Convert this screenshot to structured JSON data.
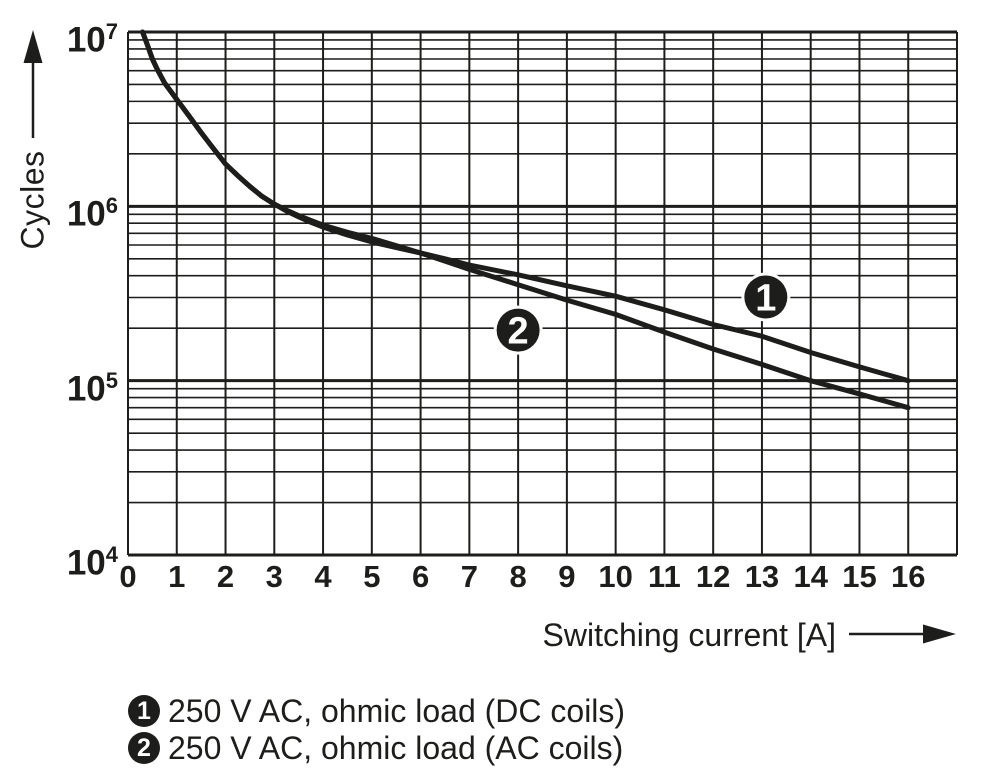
{
  "colors": {
    "ink": "#1d1d1b",
    "background": "#ffffff",
    "marker_text": "#ffffff"
  },
  "chart_data": {
    "type": "line",
    "title": "",
    "xlabel": "Switching current [A] ",
    "ylabel": "Cycles ",
    "grid": "full log grid on",
    "legend_position": "below",
    "x_axis": {
      "min": 0,
      "max": 17,
      "ticks": [
        0,
        1,
        2,
        3,
        4,
        5,
        6,
        7,
        8,
        9,
        10,
        11,
        12,
        13,
        14,
        15,
        16
      ]
    },
    "y_axis": {
      "scale": "log",
      "min": 10000,
      "max": 10000000,
      "tick_labels": [
        {
          "value": 10000000,
          "base": "10",
          "exp": "7"
        },
        {
          "value": 1000000,
          "base": "10",
          "exp": "6"
        },
        {
          "value": 100000,
          "base": "10",
          "exp": "5"
        },
        {
          "value": 10000,
          "base": "10",
          "exp": "4"
        }
      ]
    },
    "series": [
      {
        "id": "1",
        "name": "250 V AC, ohmic load (DC coils)",
        "points": [
          [
            0.3,
            10000000
          ],
          [
            0.4,
            8400000
          ],
          [
            0.5,
            7000000
          ],
          [
            0.6,
            6100000
          ],
          [
            0.75,
            5100000
          ],
          [
            1,
            4100000
          ],
          [
            1.25,
            3300000
          ],
          [
            1.5,
            2650000
          ],
          [
            1.75,
            2150000
          ],
          [
            2,
            1750000
          ],
          [
            2.25,
            1500000
          ],
          [
            2.5,
            1300000
          ],
          [
            2.75,
            1140000
          ],
          [
            3,
            1030000
          ],
          [
            3.25,
            940000
          ],
          [
            3.5,
            870000
          ],
          [
            3.75,
            810000
          ],
          [
            4,
            760000
          ],
          [
            4.5,
            685000
          ],
          [
            5,
            625000
          ],
          [
            5.5,
            580000
          ],
          [
            6,
            540000
          ],
          [
            6.5,
            500000
          ],
          [
            7,
            460000
          ],
          [
            8,
            405000
          ],
          [
            9,
            350000
          ],
          [
            10,
            305000
          ],
          [
            11,
            255000
          ],
          [
            12,
            210000
          ],
          [
            13,
            180000
          ],
          [
            14,
            145000
          ],
          [
            15,
            120000
          ],
          [
            16,
            100000
          ]
        ]
      },
      {
        "id": "2",
        "name": "250 V AC, ohmic load (AC coils)",
        "points": [
          [
            0.3,
            10000000
          ],
          [
            0.4,
            8400000
          ],
          [
            0.5,
            7000000
          ],
          [
            0.6,
            6100000
          ],
          [
            0.75,
            5100000
          ],
          [
            1,
            4100000
          ],
          [
            1.25,
            3300000
          ],
          [
            1.5,
            2650000
          ],
          [
            1.75,
            2150000
          ],
          [
            2,
            1750000
          ],
          [
            2.25,
            1500000
          ],
          [
            2.5,
            1300000
          ],
          [
            2.75,
            1140000
          ],
          [
            3,
            1030000
          ],
          [
            3.25,
            950000
          ],
          [
            3.5,
            885000
          ],
          [
            3.75,
            830000
          ],
          [
            4,
            780000
          ],
          [
            4.5,
            710000
          ],
          [
            5,
            655000
          ],
          [
            5.5,
            595000
          ],
          [
            6,
            540000
          ],
          [
            6.5,
            485000
          ],
          [
            7,
            435000
          ],
          [
            8,
            355000
          ],
          [
            9,
            290000
          ],
          [
            10,
            240000
          ],
          [
            11,
            190000
          ],
          [
            12,
            152000
          ],
          [
            13,
            124000
          ],
          [
            14,
            100000
          ],
          [
            15,
            84000
          ],
          [
            16,
            70000
          ]
        ]
      }
    ],
    "markers": [
      {
        "label": "1",
        "x": 13.08,
        "cycles": 302000
      },
      {
        "label": "2",
        "x": 8.0,
        "cycles": 195000
      }
    ]
  },
  "legend": {
    "items": [
      {
        "symbol": "1",
        "label": "250 V AC, ohmic load (DC coils)"
      },
      {
        "symbol": "2",
        "label": "250 V AC, ohmic load (AC coils)"
      }
    ]
  }
}
